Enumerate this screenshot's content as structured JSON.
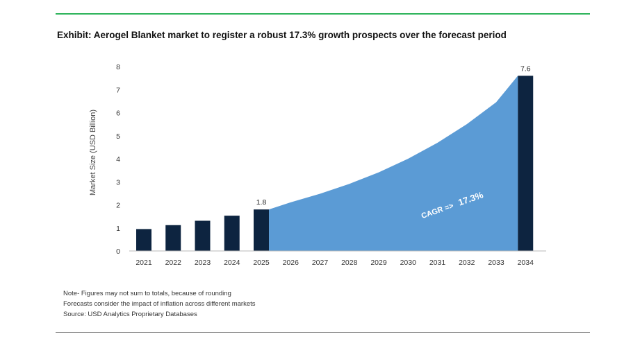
{
  "exhibit": {
    "title": "Exhibit: Aerogel Blanket market to register a robust 17.3% growth prospects over the forecast period"
  },
  "notes": [
    "Note- Figures may not sum to totals, because of rounding",
    "Forecasts consider the impact of inflation across different markets",
    "Source: USD Analytics Proprietary Databases"
  ],
  "colors": {
    "bar": "#0d2440",
    "area": "#5b9bd5",
    "top_rule": "#2db35a"
  },
  "chart_data": {
    "type": "bar",
    "title": "Exhibit: Aerogel Blanket market to register a robust 17.3% growth prospects over the forecast period",
    "ylabel": "Market Size (USD Billion)",
    "xlabel": "",
    "ylim": [
      0,
      8
    ],
    "yticks": [
      0,
      1,
      2,
      3,
      4,
      5,
      6,
      7,
      8
    ],
    "grid": false,
    "categories": [
      "2021",
      "2022",
      "2023",
      "2024",
      "2025",
      "2026",
      "2027",
      "2028",
      "2029",
      "2030",
      "2031",
      "2032",
      "2033",
      "2034"
    ],
    "bars": [
      {
        "year": "2021",
        "value": 0.95
      },
      {
        "year": "2022",
        "value": 1.12
      },
      {
        "year": "2023",
        "value": 1.31
      },
      {
        "year": "2024",
        "value": 1.53
      },
      {
        "year": "2025",
        "value": 1.8,
        "label": "1.8"
      },
      {
        "year": "2034",
        "value": 7.6,
        "label": "7.6"
      }
    ],
    "area": {
      "years": [
        "2025",
        "2026",
        "2027",
        "2028",
        "2029",
        "2030",
        "2031",
        "2032",
        "2033",
        "2034"
      ],
      "values": [
        1.8,
        2.11,
        2.48,
        2.91,
        3.41,
        4.0,
        4.69,
        5.5,
        6.45,
        7.6
      ]
    },
    "annotation": {
      "prefix": "CAGR =>",
      "value": "17.3%"
    }
  }
}
